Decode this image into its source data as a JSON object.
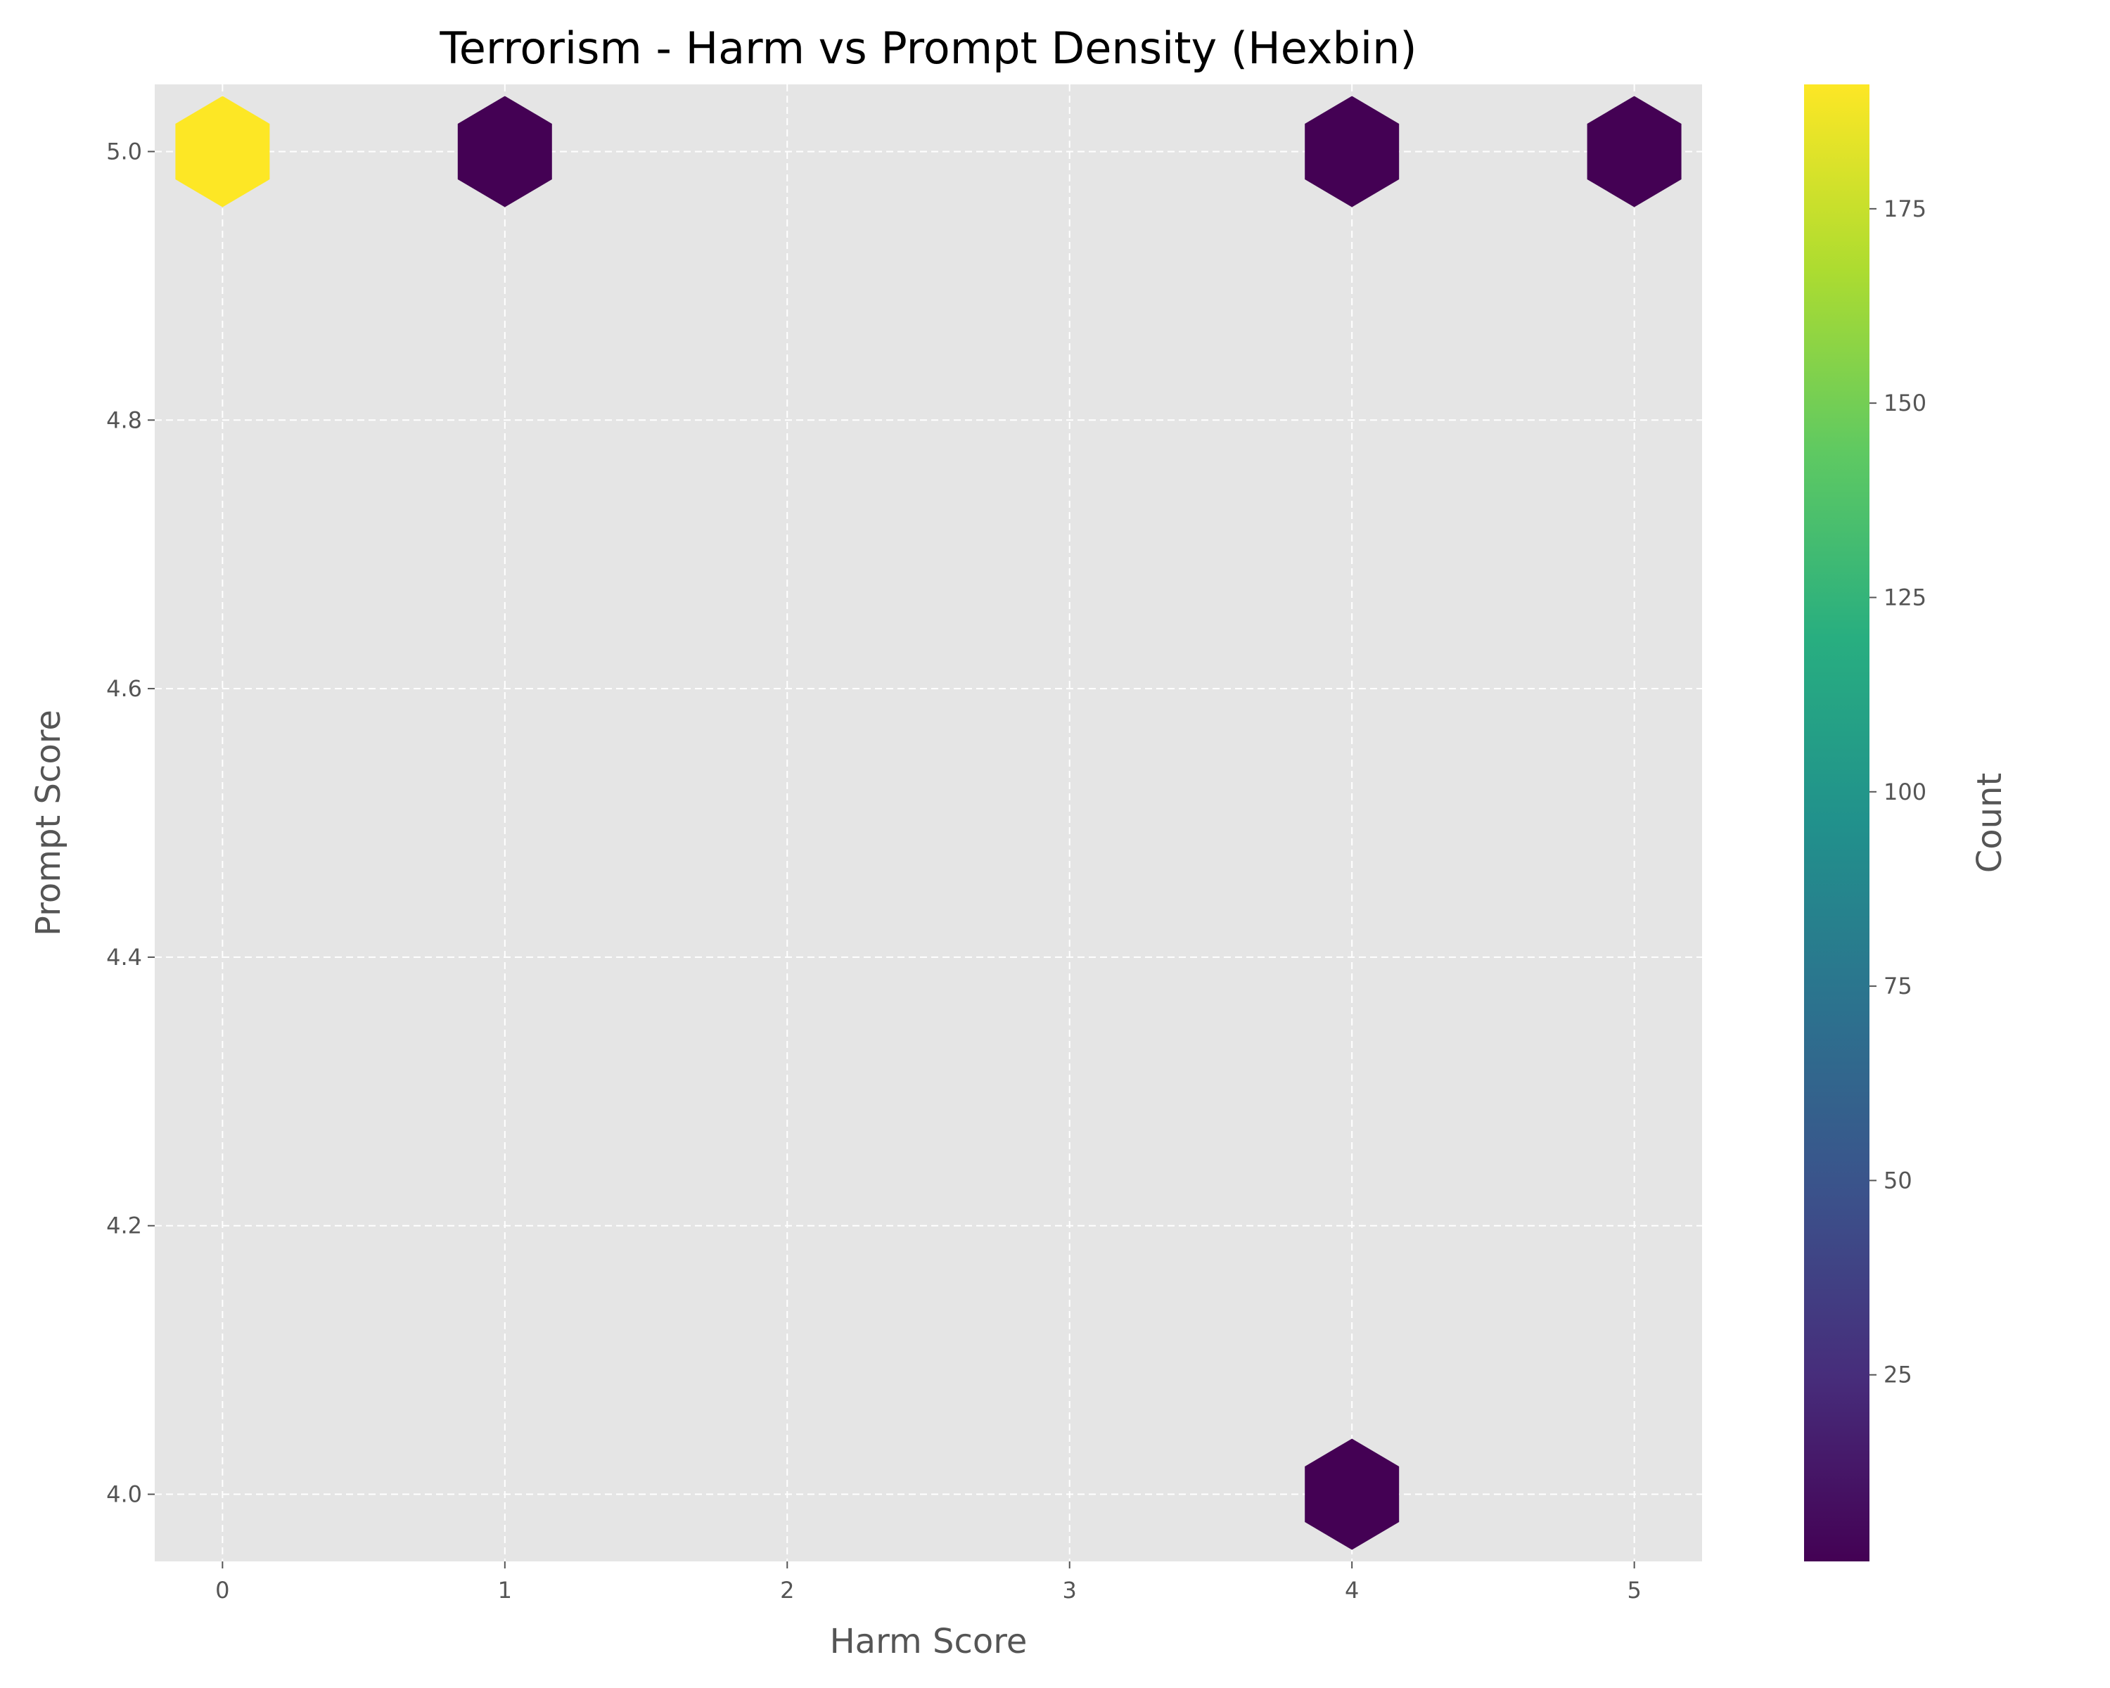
{
  "chart_data": {
    "type": "hexbin",
    "title": "Terrorism - Harm vs Prompt Density (Hexbin)",
    "xlabel": "Harm Score",
    "ylabel": "Prompt Score",
    "xlim": [
      -0.24,
      5.24
    ],
    "ylim": [
      3.95,
      5.05
    ],
    "xticks": [
      0,
      1,
      2,
      3,
      4,
      5
    ],
    "yticks": [
      4.0,
      4.2,
      4.4,
      4.6,
      4.8,
      5.0
    ],
    "grid": true,
    "colormap": "viridis",
    "colorbar": {
      "label": "Count",
      "range": [
        1,
        191
      ],
      "ticks": [
        25,
        50,
        75,
        100,
        125,
        150,
        175
      ]
    },
    "bins": [
      {
        "x": 0,
        "y": 5.0,
        "count": 191
      },
      {
        "x": 1,
        "y": 5.0,
        "count": 1
      },
      {
        "x": 4,
        "y": 5.0,
        "count": 1
      },
      {
        "x": 5,
        "y": 5.0,
        "count": 1
      },
      {
        "x": 4,
        "y": 4.0,
        "count": 1
      }
    ]
  },
  "colors": {
    "plot_background": "#e5e5e5",
    "grid": "#ffffff",
    "viridis_min": "#440154",
    "viridis_max": "#fde725"
  }
}
